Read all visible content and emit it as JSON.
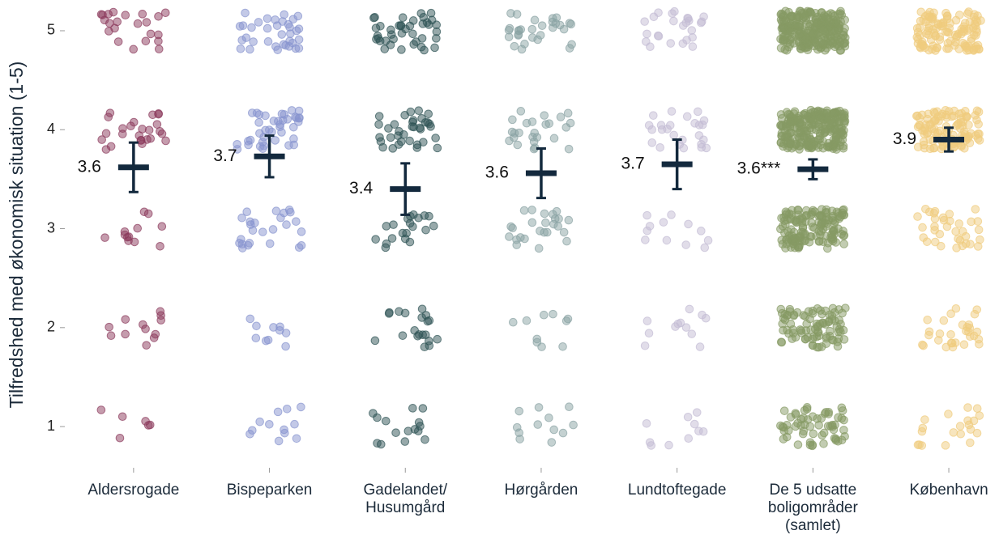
{
  "chart_data": {
    "type": "strip",
    "y_label": "Tilfredshed med økonomisk situation (1-5)",
    "categories": [
      "Aldersrogade",
      "Bispeparken",
      "Gadelandet/\nHusumgård",
      "Hørgården",
      "Lundtoftegade",
      "De 5 udsatte\nboligområder\n(samlet)",
      "København"
    ],
    "levels": [
      1,
      2,
      3,
      4,
      5
    ],
    "series": [
      {
        "name": "Aldersrogade",
        "color": "#8b3a5c",
        "counts": [
          6,
          12,
          12,
          25,
          22
        ],
        "mean": 3.62,
        "mean_label": "3.6",
        "error": 0.25
      },
      {
        "name": "Bispeparken",
        "color": "#8794cf",
        "counts": [
          12,
          10,
          25,
          40,
          35
        ],
        "mean": 3.73,
        "mean_label": "3.7",
        "error": 0.21
      },
      {
        "name": "Gadelandet/\nHusumgård",
        "color": "#2f5456",
        "counts": [
          15,
          20,
          20,
          35,
          40
        ],
        "mean": 3.4,
        "mean_label": "3.4",
        "error": 0.26
      },
      {
        "name": "Hørgården",
        "color": "#8aa3a4",
        "counts": [
          12,
          10,
          25,
          25,
          30
        ],
        "mean": 3.56,
        "mean_label": "3.6",
        "error": 0.25
      },
      {
        "name": "Lundtoftegade",
        "color": "#c3bcd4",
        "counts": [
          10,
          12,
          12,
          25,
          25
        ],
        "mean": 3.65,
        "mean_label": "3.7",
        "error": 0.25
      },
      {
        "name": "De 5 udsatte\nboligområder\n(samlet)",
        "color": "#869a64",
        "counts": [
          60,
          90,
          150,
          250,
          260
        ],
        "mean": 3.6,
        "mean_label": "3.6***",
        "error": 0.1
      },
      {
        "name": "København",
        "color": "#f0cc7e",
        "counts": [
          20,
          30,
          35,
          110,
          120
        ],
        "mean": 3.9,
        "mean_label": "3.9",
        "error": 0.12
      }
    ],
    "ylim": [
      0.6,
      5.3
    ],
    "yticks": [
      1,
      2,
      3,
      4,
      5
    ],
    "mark_color": "#13293d"
  }
}
